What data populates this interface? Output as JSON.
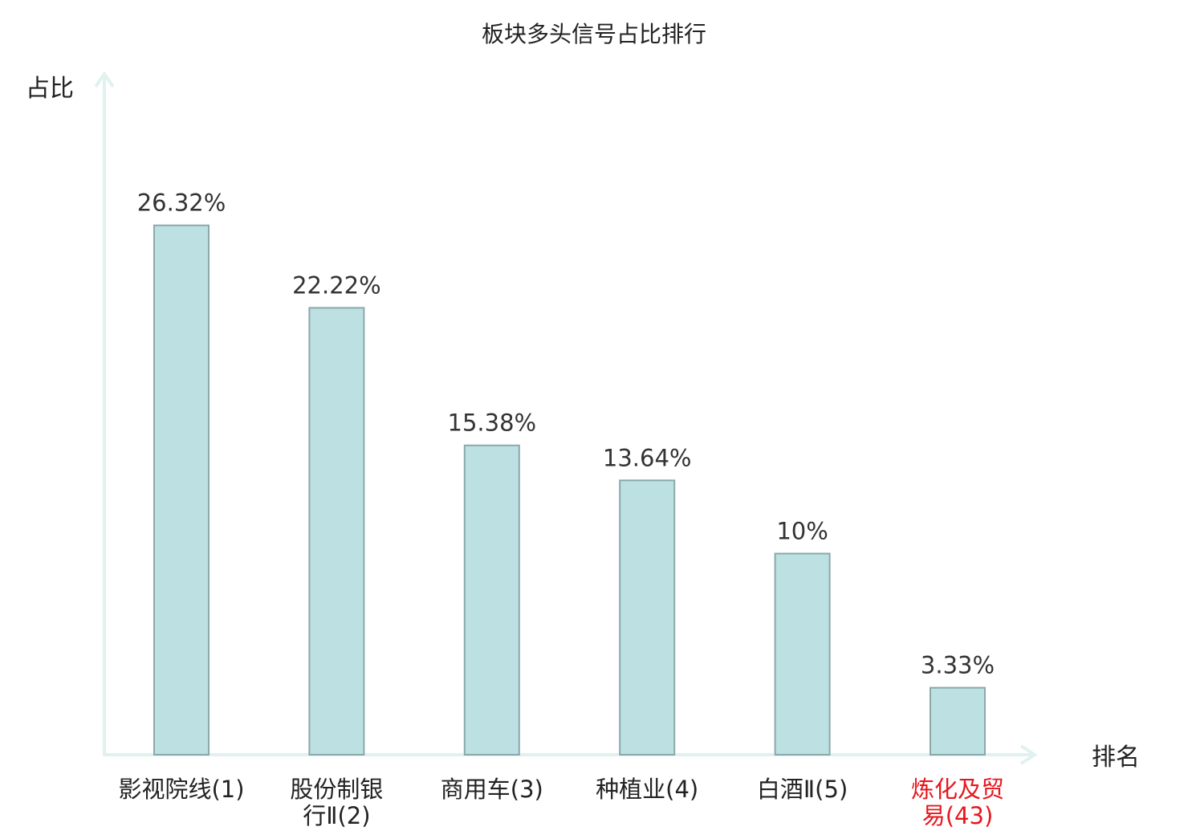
{
  "chart_data": {
    "type": "bar",
    "title": "板块多头信号占比排行",
    "ylabel": "占比",
    "xlabel": "排名",
    "ylim": [
      0,
      30
    ],
    "grid": false,
    "legend": "none",
    "categories": [
      {
        "lines": [
          "影视院线(1)"
        ],
        "highlight": false
      },
      {
        "lines": [
          "股份制银",
          "行Ⅱ(2)"
        ],
        "highlight": false
      },
      {
        "lines": [
          "商用车(3)"
        ],
        "highlight": false
      },
      {
        "lines": [
          "种植业(4)"
        ],
        "highlight": false
      },
      {
        "lines": [
          "白酒Ⅱ(5)"
        ],
        "highlight": false
      },
      {
        "lines": [
          "炼化及贸",
          "易(43)"
        ],
        "highlight": true
      }
    ],
    "values": [
      26.32,
      22.22,
      15.38,
      13.64,
      10,
      3.33
    ],
    "value_labels": [
      "26.32%",
      "22.22%",
      "15.38%",
      "13.64%",
      "10%",
      "3.33%"
    ],
    "colors": {
      "bar_fill": "#bde0e3",
      "bar_stroke": "#8aa9aa",
      "axis": "#dff2ef",
      "highlight_text": "#e8161d"
    }
  }
}
